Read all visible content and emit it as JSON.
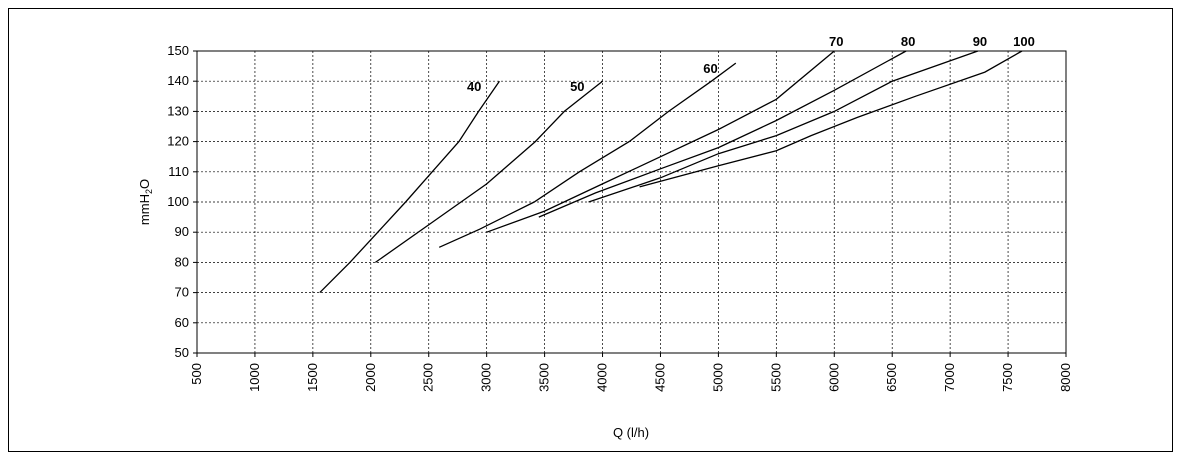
{
  "chart_data": {
    "type": "line",
    "title": "",
    "xlabel": "Q (l/h)",
    "ylabel_main": "mmH",
    "ylabel_sub": "2",
    "ylabel_tail": "O",
    "xlim": [
      500,
      8000
    ],
    "ylim": [
      50,
      150
    ],
    "xticks": [
      "500",
      "1000",
      "1500",
      "2000",
      "2500",
      "3000",
      "3500",
      "4000",
      "4500",
      "5000",
      "5500",
      "6000",
      "6500",
      "7000",
      "7500",
      "8000"
    ],
    "yticks": [
      "50",
      "60",
      "70",
      "80",
      "90",
      "100",
      "110",
      "120",
      "130",
      "140",
      "150"
    ],
    "grid": true,
    "grid_style": "dashed",
    "legend": "inline labels at line ends",
    "line_color": "#000000",
    "series": [
      {
        "name": "40",
        "points": [
          [
            1560,
            70
          ],
          [
            1820,
            80
          ],
          [
            2060,
            90
          ],
          [
            2300,
            100
          ],
          [
            2530,
            110
          ],
          [
            2760,
            120
          ],
          [
            2930,
            130
          ],
          [
            3110,
            140
          ]
        ]
      },
      {
        "name": "50",
        "points": [
          [
            2040,
            80
          ],
          [
            2520,
            93
          ],
          [
            3000,
            106
          ],
          [
            3420,
            120
          ],
          [
            3670,
            130
          ],
          [
            4000,
            140
          ]
        ]
      },
      {
        "name": "60",
        "points": [
          [
            2590,
            85
          ],
          [
            2940,
            91
          ],
          [
            3410,
            100
          ],
          [
            3800,
            110
          ],
          [
            4230,
            120
          ],
          [
            4570,
            130
          ],
          [
            4940,
            140
          ],
          [
            5150,
            146
          ]
        ]
      },
      {
        "name": "70",
        "points": [
          [
            3000,
            90
          ],
          [
            3500,
            97
          ],
          [
            4000,
            106
          ],
          [
            4500,
            115
          ],
          [
            5000,
            124
          ],
          [
            5500,
            134
          ],
          [
            6000,
            150
          ]
        ]
      },
      {
        "name": "80",
        "points": [
          [
            3450,
            95
          ],
          [
            3940,
            103
          ],
          [
            4500,
            111
          ],
          [
            5000,
            118
          ],
          [
            5500,
            127
          ],
          [
            6000,
            137
          ],
          [
            6620,
            150
          ]
        ]
      },
      {
        "name": "90",
        "points": [
          [
            3880,
            100
          ],
          [
            4500,
            108
          ],
          [
            5000,
            116
          ],
          [
            5500,
            122
          ],
          [
            6000,
            130
          ],
          [
            6500,
            140
          ],
          [
            7240,
            150
          ]
        ]
      },
      {
        "name": "100",
        "points": [
          [
            4320,
            105
          ],
          [
            5000,
            112
          ],
          [
            5500,
            117
          ],
          [
            5800,
            122
          ],
          [
            6200,
            128
          ],
          [
            6700,
            135
          ],
          [
            7300,
            143
          ],
          [
            7620,
            150
          ]
        ]
      }
    ]
  }
}
